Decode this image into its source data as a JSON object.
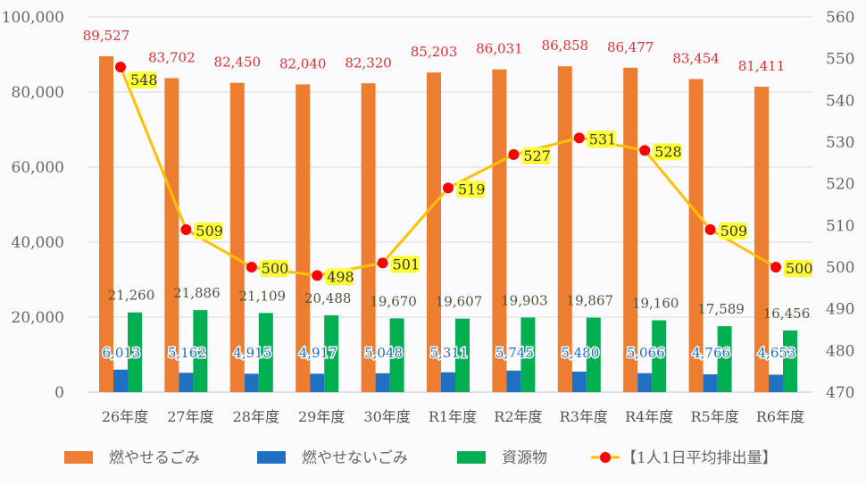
{
  "chart_data": {
    "type": "bar+line",
    "categories": [
      "26年度",
      "27年度",
      "28年度",
      "29年度",
      "30年度",
      "R1年度",
      "R2年度",
      "R3年度",
      "R4年度",
      "R5年度",
      "R6年度"
    ],
    "series": [
      {
        "name": "燃やせるごみ",
        "type": "bar",
        "axis": "left",
        "color": "#ed7d31",
        "values": [
          89527,
          83702,
          82450,
          82040,
          82320,
          85203,
          86031,
          86858,
          86477,
          83454,
          81411
        ]
      },
      {
        "name": "燃やせないごみ",
        "type": "bar",
        "axis": "left",
        "color": "#1f70c1",
        "values": [
          6013,
          5162,
          4915,
          4917,
          5048,
          5311,
          5745,
          5480,
          5066,
          4766,
          4653
        ]
      },
      {
        "name": "資源物",
        "type": "bar",
        "axis": "left",
        "color": "#00b050",
        "values": [
          21260,
          21886,
          21109,
          20488,
          19670,
          19607,
          19903,
          19867,
          19160,
          17589,
          16456
        ]
      },
      {
        "name": "【1人1日平均排出量】",
        "type": "line",
        "axis": "right",
        "color": "#ffc000",
        "marker_color": "#ff0000",
        "values": [
          548,
          509,
          500,
          498,
          501,
          519,
          527,
          531,
          528,
          509,
          500
        ]
      }
    ],
    "left_axis": {
      "min": 0,
      "max": 100000,
      "ticks": [
        "0",
        "20,000",
        "40,000",
        "60,000",
        "80,000",
        "100,000"
      ]
    },
    "right_axis": {
      "min": 470,
      "max": 560,
      "ticks": [
        "470",
        "480",
        "490",
        "500",
        "510",
        "520",
        "530",
        "540",
        "550",
        "560"
      ]
    },
    "grid": true,
    "legend_position": "bottom"
  }
}
